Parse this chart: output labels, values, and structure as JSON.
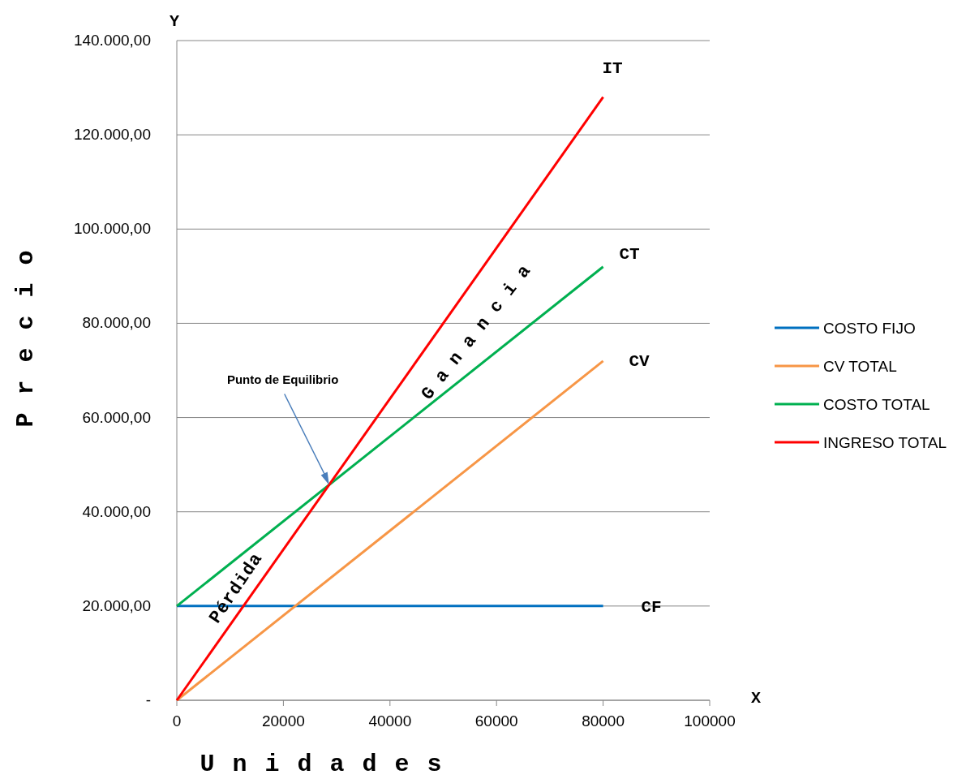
{
  "chart_data": {
    "type": "line",
    "xlabel": "Unidades",
    "ylabel": "Precio",
    "xlim": [
      0,
      100000
    ],
    "xticks": [
      0,
      20000,
      40000,
      60000,
      80000,
      100000
    ],
    "ylim": [
      0,
      140000
    ],
    "yticks": [
      {
        "value": 0,
        "label": "-"
      },
      {
        "value": 20000,
        "label": "20.000,00"
      },
      {
        "value": 40000,
        "label": "40.000,00"
      },
      {
        "value": 60000,
        "label": "60.000,00"
      },
      {
        "value": 80000,
        "label": "80.000,00"
      },
      {
        "value": 100000,
        "label": "100.000,00"
      },
      {
        "value": 120000,
        "label": "120.000,00"
      },
      {
        "value": 140000,
        "label": "140.000,00"
      }
    ],
    "x": [
      0,
      80000
    ],
    "series": [
      {
        "name": "COSTO FIJO",
        "color": "#0070c0",
        "values": [
          20000,
          20000
        ]
      },
      {
        "name": "CV TOTAL",
        "color": "#f79646",
        "values": [
          0,
          72000
        ]
      },
      {
        "name": "COSTO TOTAL",
        "color": "#00b050",
        "values": [
          20000,
          92000
        ]
      },
      {
        "name": "INGRESO TOTAL",
        "color": "#ff0000",
        "values": [
          0,
          128000
        ]
      }
    ],
    "grid": "y",
    "legend": "right",
    "marker": "none",
    "line_style": "solid",
    "annotations": [
      "IT",
      "CT",
      "CV",
      "CF",
      {
        "text": "Punto de Equilibrio",
        "x": 28571,
        "y": 45714
      },
      "Ganancia",
      "Pérdida",
      "Y",
      "X"
    ]
  }
}
